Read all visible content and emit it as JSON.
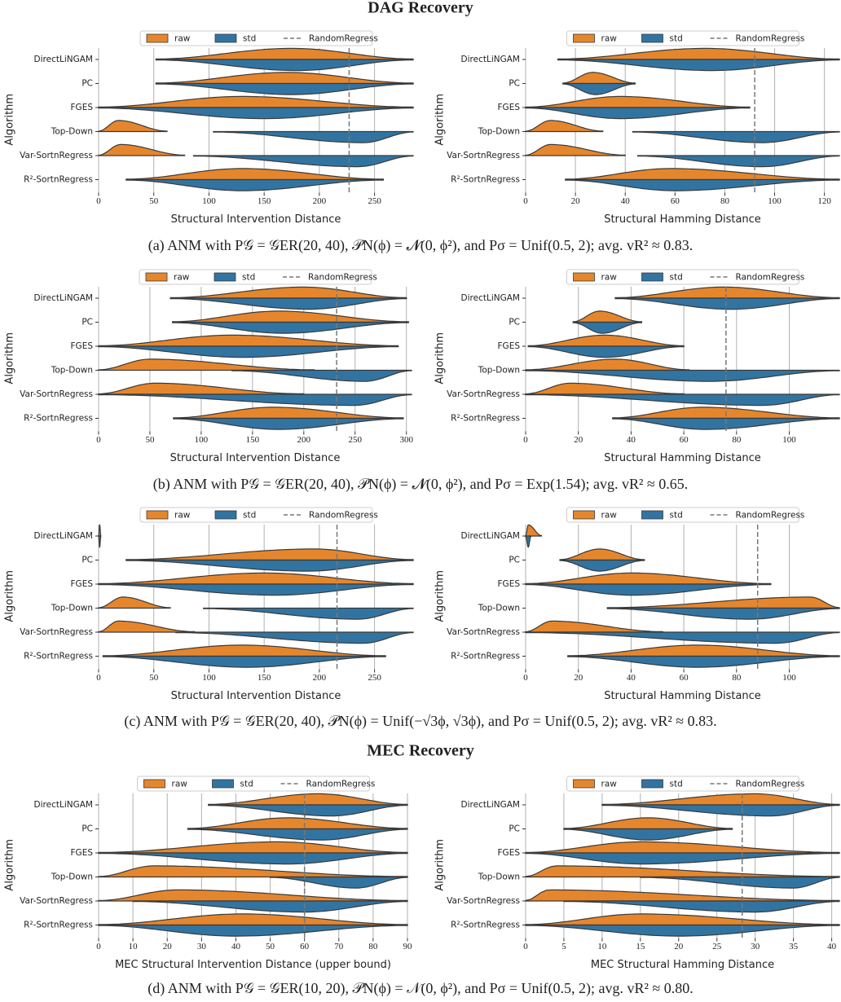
{
  "headings": [
    "DAG Recovery",
    "MEC Recovery"
  ],
  "captions": [
    "(a) ANM with P𝒢 = 𝒢ER(20, 40), 𝒫N(ϕ) = 𝓝(0, ϕ²), and Pσ = Unif(0.5, 2);  avg. vR² ≈ 0.83.",
    "(b) ANM with P𝒢 = 𝒢ER(20, 40), 𝒫N(ϕ) = 𝓝(0, ϕ²), and Pσ = Exp(1.54);  avg. vR² ≈ 0.65.",
    "(c) ANM with P𝒢 = 𝒢ER(20, 40), 𝒫N(ϕ) = Unif(−√3ϕ, √3ϕ), and Pσ = Unif(0.5, 2);  avg. vR² ≈ 0.83.",
    "(d) ANM with P𝒢 = 𝒢ER(10, 20), 𝒫N(ϕ) = 𝒩(0, ϕ²), and Pσ = Unif(0.5, 2);  avg. vR² ≈ 0.80."
  ],
  "chart_data": [
    {
      "type": "violin",
      "x_label": "Structural Intervention Distance",
      "y_label": "Algorithm",
      "categories": [
        "DirectLiNGAM",
        "PC",
        "FGES",
        "Top-Down",
        "Var-SortnRegress",
        "R²-SortnRegress"
      ],
      "series": [
        {
          "name": "raw",
          "color": "#e6862c",
          "low": [
            52,
            52,
            0,
            0,
            0,
            25
          ],
          "peak": [
            175,
            170,
            130,
            18,
            20,
            130
          ],
          "high": [
            285,
            285,
            285,
            62,
            78,
            258
          ]
        },
        {
          "name": "std",
          "color": "#3274a1",
          "low": [
            52,
            52,
            0,
            104,
            86,
            25
          ],
          "peak": [
            180,
            175,
            150,
            240,
            235,
            130
          ],
          "high": [
            285,
            285,
            285,
            285,
            285,
            258
          ]
        }
      ],
      "reference": {
        "name": "RandomRegress",
        "value": 227
      },
      "xlim": [
        0,
        285
      ],
      "xticks": [
        0,
        50,
        100,
        150,
        200,
        250
      ],
      "grid": true
    },
    {
      "type": "violin",
      "x_label": "Structural Hamming Distance",
      "y_label": "Algorithm",
      "categories": [
        "DirectLiNGAM",
        "PC",
        "FGES",
        "Top-Down",
        "Var-SortnRegress",
        "R²-SortnRegress"
      ],
      "series": [
        {
          "name": "raw",
          "color": "#e6862c",
          "low": [
            13,
            15,
            0,
            0,
            0,
            16
          ],
          "peak": [
            72,
            27,
            38,
            10,
            10,
            58
          ],
          "high": [
            126,
            44,
            90,
            31,
            40,
            126
          ]
        },
        {
          "name": "std",
          "color": "#3274a1",
          "low": [
            13,
            15,
            0,
            43,
            45,
            16
          ],
          "peak": [
            75,
            28,
            38,
            95,
            95,
            60
          ],
          "high": [
            126,
            44,
            90,
            126,
            126,
            126
          ]
        }
      ],
      "reference": {
        "name": "RandomRegress",
        "value": 92
      },
      "xlim": [
        0,
        126
      ],
      "xticks": [
        0,
        20,
        40,
        60,
        80,
        100,
        120
      ],
      "grid": true
    },
    {
      "type": "violin",
      "x_label": "Structural Intervention Distance",
      "y_label": "Algorithm",
      "categories": [
        "DirectLiNGAM",
        "PC",
        "FGES",
        "Top-Down",
        "Var-SortnRegress",
        "R²-SortnRegress"
      ],
      "series": [
        {
          "name": "raw",
          "color": "#e6862c",
          "low": [
            70,
            72,
            0,
            0,
            0,
            73
          ],
          "peak": [
            200,
            175,
            130,
            50,
            55,
            170
          ],
          "high": [
            300,
            302,
            292,
            210,
            200,
            297
          ]
        },
        {
          "name": "std",
          "color": "#3274a1",
          "low": [
            70,
            72,
            0,
            130,
            0,
            73
          ],
          "peak": [
            205,
            180,
            140,
            260,
            250,
            175
          ],
          "high": [
            300,
            302,
            292,
            305,
            305,
            297
          ]
        }
      ],
      "reference": {
        "name": "RandomRegress",
        "value": 232
      },
      "xlim": [
        0,
        305
      ],
      "xticks": [
        0,
        50,
        100,
        150,
        200,
        250,
        300
      ],
      "grid": true
    },
    {
      "type": "violin",
      "x_label": "Structural Hamming Distance",
      "y_label": "Algorithm",
      "categories": [
        "DirectLiNGAM",
        "PC",
        "FGES",
        "Top-Down",
        "Var-SortnRegress",
        "R²-SortnRegress"
      ],
      "series": [
        {
          "name": "raw",
          "color": "#e6862c",
          "low": [
            34,
            18,
            1,
            0,
            0,
            33
          ],
          "peak": [
            75,
            28,
            30,
            34,
            17,
            67
          ],
          "high": [
            119,
            44,
            60,
            62,
            60,
            119
          ]
        },
        {
          "name": "std",
          "color": "#3274a1",
          "low": [
            34,
            18,
            1,
            0,
            0,
            33
          ],
          "peak": [
            78,
            29,
            30,
            70,
            90,
            68
          ],
          "high": [
            119,
            44,
            60,
            119,
            119,
            119
          ]
        }
      ],
      "reference": {
        "name": "RandomRegress",
        "value": 76
      },
      "xlim": [
        0,
        119
      ],
      "xticks": [
        0,
        20,
        40,
        60,
        80,
        100
      ],
      "grid": true
    },
    {
      "type": "violin",
      "x_label": "Structural Intervention Distance",
      "y_label": "Algorithm",
      "categories": [
        "DirectLiNGAM",
        "PC",
        "FGES",
        "Top-Down",
        "Var-SortnRegress",
        "R²-SortnRegress"
      ],
      "series": [
        {
          "name": "raw",
          "color": "#e6862c",
          "low": [
            0,
            25,
            0,
            0,
            0,
            4
          ],
          "peak": [
            1,
            195,
            150,
            22,
            18,
            130
          ],
          "high": [
            2,
            285,
            285,
            65,
            87,
            260
          ]
        },
        {
          "name": "std",
          "color": "#3274a1",
          "low": [
            0,
            25,
            0,
            95,
            70,
            4
          ],
          "peak": [
            1,
            190,
            160,
            235,
            240,
            135
          ],
          "high": [
            2,
            285,
            285,
            285,
            285,
            260
          ]
        }
      ],
      "reference": {
        "name": "RandomRegress",
        "value": 216
      },
      "xlim": [
        0,
        285
      ],
      "xticks": [
        0,
        50,
        100,
        150,
        200,
        250
      ],
      "grid": true
    },
    {
      "type": "violin",
      "x_label": "Structural Hamming Distance",
      "y_label": "Algorithm",
      "categories": [
        "DirectLiNGAM",
        "PC",
        "FGES",
        "Top-Down",
        "Var-SortnRegress",
        "R²-SortnRegress"
      ],
      "series": [
        {
          "name": "raw",
          "color": "#e6862c",
          "low": [
            0,
            13,
            0,
            31,
            0,
            16
          ],
          "peak": [
            1,
            28,
            40,
            108,
            10,
            65
          ],
          "high": [
            6,
            45,
            93,
            119,
            52,
            119
          ]
        },
        {
          "name": "std",
          "color": "#3274a1",
          "low": [
            0,
            13,
            0,
            31,
            0,
            16
          ],
          "peak": [
            1,
            28,
            40,
            85,
            95,
            65
          ],
          "high": [
            2,
            45,
            93,
            119,
            119,
            119
          ]
        }
      ],
      "reference": {
        "name": "RandomRegress",
        "value": 88
      },
      "xlim": [
        0,
        119
      ],
      "xticks": [
        0,
        20,
        40,
        60,
        80,
        100
      ],
      "grid": true
    },
    {
      "type": "violin",
      "x_label": "MEC Structural Intervention Distance (upper bound)",
      "y_label": "Algorithm",
      "categories": [
        "DirectLiNGAM",
        "PC",
        "FGES",
        "Top-Down",
        "Var-SortnRegress",
        "R²-SortnRegress"
      ],
      "series": [
        {
          "name": "raw",
          "color": "#e6862c",
          "low": [
            32,
            26,
            0,
            0,
            0,
            0
          ],
          "peak": [
            64,
            55,
            52,
            16,
            23,
            42
          ],
          "high": [
            90,
            90,
            90,
            90,
            90,
            90
          ]
        },
        {
          "name": "std",
          "color": "#3274a1",
          "low": [
            32,
            26,
            0,
            50,
            10,
            0
          ],
          "peak": [
            68,
            65,
            55,
            75,
            60,
            40
          ],
          "high": [
            90,
            90,
            90,
            90,
            90,
            90
          ]
        }
      ],
      "reference": {
        "name": "RandomRegress",
        "value": 60
      },
      "xlim": [
        0,
        90
      ],
      "xticks": [
        0,
        10,
        20,
        30,
        40,
        50,
        60,
        70,
        80,
        90
      ],
      "grid": true
    },
    {
      "type": "violin",
      "x_label": "MEC Structural Hamming Distance",
      "y_label": "Algorithm",
      "categories": [
        "DirectLiNGAM",
        "PC",
        "FGES",
        "Top-Down",
        "Var-SortnRegress",
        "R²-SortnRegress"
      ],
      "series": [
        {
          "name": "raw",
          "color": "#e6862c",
          "low": [
            10,
            5,
            0,
            0,
            0,
            0
          ],
          "peak": [
            30,
            16,
            15,
            4,
            3,
            15
          ],
          "high": [
            41,
            27,
            41,
            41,
            41,
            41
          ]
        },
        {
          "name": "std",
          "color": "#3274a1",
          "low": [
            10,
            5,
            0,
            15,
            5,
            0
          ],
          "peak": [
            32,
            16,
            15,
            35,
            30,
            20
          ],
          "high": [
            41,
            27,
            41,
            41,
            41,
            41
          ]
        }
      ],
      "reference": {
        "name": "RandomRegress",
        "value": 28.3
      },
      "xlim": [
        0,
        41
      ],
      "xticks": [
        0,
        5,
        10,
        15,
        20,
        25,
        30,
        35,
        40
      ],
      "grid": true
    }
  ]
}
